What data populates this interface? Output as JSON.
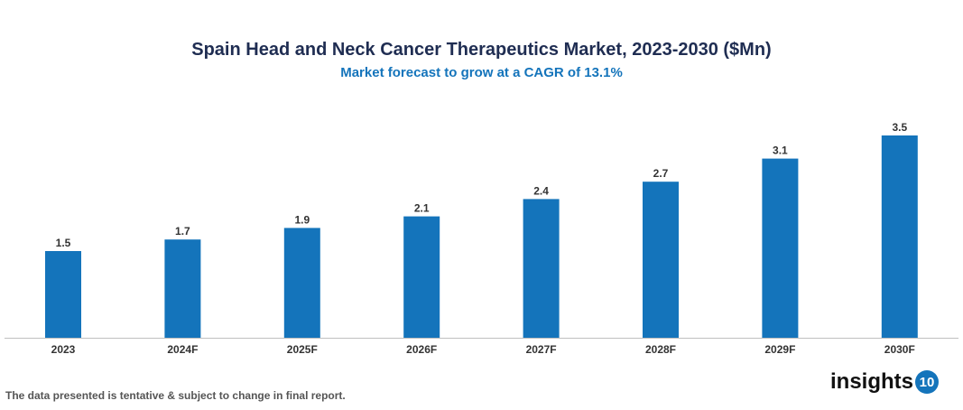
{
  "chart_data": {
    "type": "bar",
    "title": "Spain Head and Neck Cancer Therapeutics Market, 2023-2030 ($Mn)",
    "subtitle": "Market forecast to grow at a CAGR of 13.1%",
    "categories": [
      "2023",
      "2024F",
      "2025F",
      "2026F",
      "2027F",
      "2028F",
      "2029F",
      "2030F"
    ],
    "values": [
      1.5,
      1.7,
      1.9,
      2.1,
      2.4,
      2.7,
      3.1,
      3.5
    ],
    "ylim": [
      0,
      3.5
    ],
    "grid": false,
    "bar_color": "#1474bb"
  },
  "footnote": "The data presented is tentative & subject to change in final report.",
  "logo": {
    "text": "insights",
    "badge": "10"
  }
}
